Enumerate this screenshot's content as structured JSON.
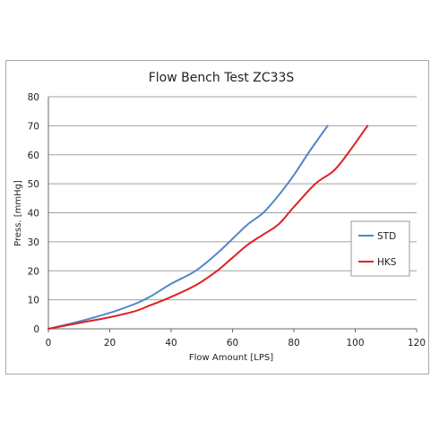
{
  "chart_data": {
    "type": "line",
    "title": "Flow Bench Test  ZC33S",
    "xlabel": "Flow Amount [LPS]",
    "ylabel": "Press. [mmHg]",
    "xlim": [
      0,
      120
    ],
    "ylim": [
      0,
      80
    ],
    "xticks": [
      0,
      20,
      40,
      60,
      80,
      100,
      120
    ],
    "yticks": [
      0,
      10,
      20,
      30,
      40,
      50,
      60,
      70,
      80
    ],
    "grid": "horizontal",
    "legend": "right",
    "series": [
      {
        "name": "STD",
        "color": "#4f87cc",
        "x": [
          0,
          10,
          20,
          28,
          33,
          40,
          48,
          55,
          60,
          65,
          70,
          75,
          80,
          85,
          91
        ],
        "y": [
          0,
          2.5,
          5.5,
          8.5,
          11,
          15.5,
          20,
          26,
          31,
          36,
          40,
          46,
          53,
          61,
          70
        ]
      },
      {
        "name": "HKS",
        "color": "#e02020",
        "x": [
          0,
          10,
          20,
          28,
          33,
          40,
          48,
          55,
          60,
          65,
          70,
          75,
          80,
          87,
          93,
          98,
          104
        ],
        "y": [
          0,
          2,
          4,
          6,
          8,
          11,
          15,
          20,
          24.5,
          29,
          32.5,
          36,
          42,
          50,
          54.5,
          61,
          70
        ]
      }
    ]
  }
}
